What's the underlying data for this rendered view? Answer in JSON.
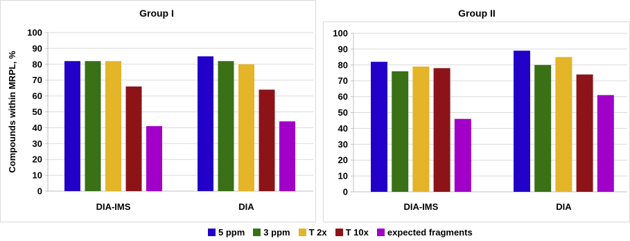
{
  "legend": {
    "items": [
      {
        "label": "5 ppm",
        "color": "#2200c8"
      },
      {
        "label": "3 ppm",
        "color": "#3a7016"
      },
      {
        "label": "T 2x",
        "color": "#e4b429"
      },
      {
        "label": "T 10x",
        "color": "#8c1418"
      },
      {
        "label": "expected fragments",
        "color": "#a000c8"
      }
    ]
  },
  "chart_data": [
    {
      "type": "bar",
      "title": "Group I",
      "xlabel": "",
      "ylabel": "Compounds within MRPL, %",
      "ylim": [
        0,
        100
      ],
      "yticks": [
        "0",
        "10",
        "20",
        "30",
        "40",
        "50",
        "60",
        "70",
        "80",
        "90",
        "100"
      ],
      "grid": true,
      "legend": "bottom",
      "categories": [
        "DIA-IMS",
        "DIA"
      ],
      "series": [
        {
          "name": "5 ppm",
          "color": "#2200c8",
          "values": [
            82,
            85
          ]
        },
        {
          "name": "3 ppm",
          "color": "#3a7016",
          "values": [
            82,
            82
          ]
        },
        {
          "name": "T 2x",
          "color": "#e4b429",
          "values": [
            82,
            80
          ]
        },
        {
          "name": "T 10x",
          "color": "#8c1418",
          "values": [
            66,
            64
          ]
        },
        {
          "name": "expected fragments",
          "color": "#a000c8",
          "values": [
            41,
            44
          ]
        }
      ]
    },
    {
      "type": "bar",
      "title": "Group II",
      "xlabel": "",
      "ylabel": "",
      "ylim": [
        0,
        100
      ],
      "yticks": [
        "0",
        "10",
        "20",
        "30",
        "40",
        "50",
        "60",
        "70",
        "80",
        "90",
        "100"
      ],
      "grid": true,
      "legend": "bottom",
      "categories": [
        "DIA-IMS",
        "DIA"
      ],
      "series": [
        {
          "name": "5 ppm",
          "color": "#2200c8",
          "values": [
            82,
            89
          ]
        },
        {
          "name": "3 ppm",
          "color": "#3a7016",
          "values": [
            76,
            80
          ]
        },
        {
          "name": "T 2x",
          "color": "#e4b429",
          "values": [
            79,
            85
          ]
        },
        {
          "name": "T 10x",
          "color": "#8c1418",
          "values": [
            78,
            74
          ]
        },
        {
          "name": "expected fragments",
          "color": "#a000c8",
          "values": [
            46,
            61
          ]
        }
      ]
    }
  ]
}
